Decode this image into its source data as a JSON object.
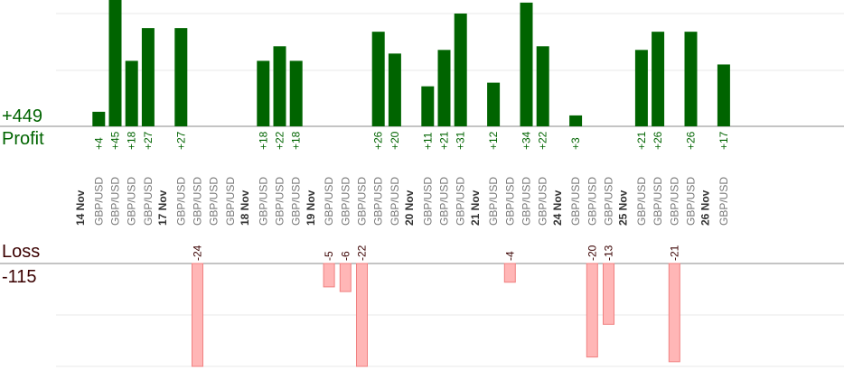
{
  "summary": {
    "profit_total": "+449",
    "profit_label": "Profit",
    "loss_label": "Loss",
    "loss_total": "-115"
  },
  "colors": {
    "profit": "#006400",
    "loss_fill": "#ffb6b6",
    "loss_stroke": "#f08080",
    "profit_text": "#006400",
    "loss_text": "#3a0000"
  },
  "chart_data": {
    "type": "bar",
    "profit_ylim": [
      0,
      50
    ],
    "loss_ylim": [
      0,
      25
    ],
    "categories": [
      {
        "group": "14 Nov",
        "items": [
          {
            "pair": "GBP/USD",
            "label": "+4",
            "value": 4,
            "sign": "profit"
          },
          {
            "pair": "GBP/USD",
            "label": "+45",
            "value": 45,
            "sign": "profit"
          },
          {
            "pair": "GBP/USD",
            "label": "+18",
            "value": 18,
            "sign": "profit"
          },
          {
            "pair": "GBP/USD",
            "label": "+27",
            "value": 27,
            "sign": "profit"
          }
        ]
      },
      {
        "group": "17 Nov",
        "items": [
          {
            "pair": "GBP/USD",
            "label": "+27",
            "value": 27,
            "sign": "profit"
          },
          {
            "pair": "GBP/USD",
            "label": "-24",
            "value": 24,
            "sign": "loss"
          },
          {
            "pair": "GBP/USD",
            "label": "",
            "value": 0,
            "sign": "none"
          },
          {
            "pair": "GBP/USD",
            "label": "",
            "value": 0,
            "sign": "none"
          }
        ]
      },
      {
        "group": "18 Nov",
        "items": [
          {
            "pair": "GBP/USD",
            "label": "+18",
            "value": 18,
            "sign": "profit"
          },
          {
            "pair": "GBP/USD",
            "label": "+22",
            "value": 22,
            "sign": "profit"
          },
          {
            "pair": "GBP/USD",
            "label": "+18",
            "value": 18,
            "sign": "profit"
          }
        ]
      },
      {
        "group": "19 Nov",
        "items": [
          {
            "pair": "GBP/USD",
            "label": "-5",
            "value": 5,
            "sign": "loss"
          },
          {
            "pair": "GBP/USD",
            "label": "-6",
            "value": 6,
            "sign": "loss"
          },
          {
            "pair": "GBP/USD",
            "label": "-22",
            "value": 22,
            "sign": "loss"
          },
          {
            "pair": "GBP/USD",
            "label": "+26",
            "value": 26,
            "sign": "profit"
          },
          {
            "pair": "GBP/USD",
            "label": "+20",
            "value": 20,
            "sign": "profit"
          }
        ]
      },
      {
        "group": "20 Nov",
        "items": [
          {
            "pair": "GBP/USD",
            "label": "+11",
            "value": 11,
            "sign": "profit"
          },
          {
            "pair": "GBP/USD",
            "label": "+21",
            "value": 21,
            "sign": "profit"
          },
          {
            "pair": "GBP/USD",
            "label": "+31",
            "value": 31,
            "sign": "profit"
          }
        ]
      },
      {
        "group": "21 Nov",
        "items": [
          {
            "pair": "GBP/USD",
            "label": "+12",
            "value": 12,
            "sign": "profit"
          },
          {
            "pair": "GBP/USD",
            "label": "-4",
            "value": 4,
            "sign": "loss"
          },
          {
            "pair": "GBP/USD",
            "label": "+34",
            "value": 34,
            "sign": "profit"
          },
          {
            "pair": "GBP/USD",
            "label": "+22",
            "value": 22,
            "sign": "profit"
          }
        ]
      },
      {
        "group": "24 Nov",
        "items": [
          {
            "pair": "GBP/USD",
            "label": "+3",
            "value": 3,
            "sign": "profit"
          },
          {
            "pair": "GBP/USD",
            "label": "-20",
            "value": 20,
            "sign": "loss"
          },
          {
            "pair": "GBP/USD",
            "label": "-13",
            "value": 13,
            "sign": "loss"
          }
        ]
      },
      {
        "group": "25 Nov",
        "items": [
          {
            "pair": "GBP/USD",
            "label": "+21",
            "value": 21,
            "sign": "profit"
          },
          {
            "pair": "GBP/USD",
            "label": "+26",
            "value": 26,
            "sign": "profit"
          },
          {
            "pair": "GBP/USD",
            "label": "-21",
            "value": 21,
            "sign": "loss"
          },
          {
            "pair": "GBP/USD",
            "label": "+26",
            "value": 26,
            "sign": "profit"
          }
        ]
      },
      {
        "group": "26 Nov",
        "items": [
          {
            "pair": "GBP/USD",
            "label": "+17",
            "value": 17,
            "sign": "profit"
          }
        ]
      }
    ]
  }
}
